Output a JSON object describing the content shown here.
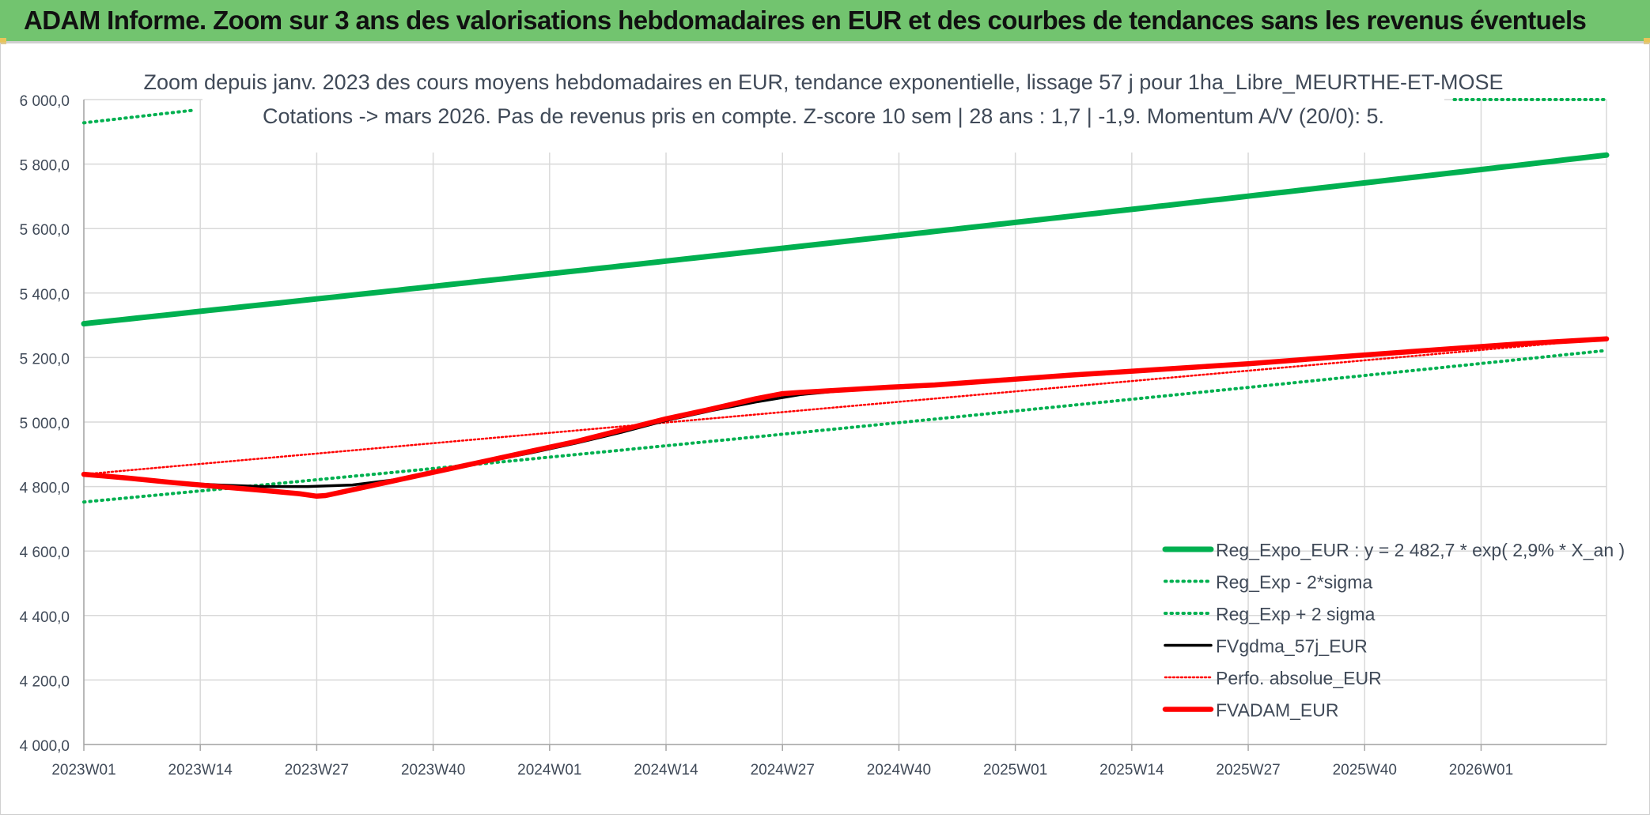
{
  "header": {
    "title": "ADAM Informe. Zoom sur 3 ans des valorisations hebdomadaires en EUR et des courbes de tendances sans les revenus éventuels"
  },
  "colors": {
    "banner_bg": "#72c46f",
    "reg_expo": "#00b050",
    "sigma_lines": "#00b050",
    "fvgdma": "#000000",
    "perfo": "#ff0000",
    "fvadam": "#ff0000",
    "grid": "#d9d9d9"
  },
  "chart_data": {
    "type": "line",
    "title": "Zoom depuis janv. 2023 des cours moyens hebdomadaires en EUR, tendance exponentielle, lissage 57 j pour 1ha_Libre_MEURTHE-ET-MOSE",
    "subtitle": "Cotations -> mars 2026. Pas de revenus pris en compte. Z-score 10 sem | 28 ans : 1,7 | -1,9. Momentum A/V (20/0): 5.",
    "xlabel": "",
    "ylabel": "",
    "ylim": [
      4000,
      6000
    ],
    "y_ticks": [
      4000,
      4200,
      4400,
      4600,
      4800,
      5000,
      5200,
      5400,
      5600,
      5800,
      6000
    ],
    "y_tick_labels": [
      "4 000,0",
      "4 200,0",
      "4 400,0",
      "4 600,0",
      "4 800,0",
      "5 000,0",
      "5 200,0",
      "5 400,0",
      "5 600,0",
      "5 800,0",
      "6 000,0"
    ],
    "x_tick_labels": [
      "2023W01",
      "2023W14",
      "2023W27",
      "2023W40",
      "2024W01",
      "2024W14",
      "2024W27",
      "2024W40",
      "2025W01",
      "2025W14",
      "2025W27",
      "2025W40",
      "2026W01"
    ],
    "x_tick_weeks": [
      0,
      13,
      26,
      39,
      52,
      65,
      78,
      91,
      104,
      117,
      130,
      143,
      156
    ],
    "x_range_weeks": [
      0,
      170
    ],
    "grid": true,
    "legend_position": "bottom-right",
    "series": [
      {
        "name": "Reg_Expo_EUR : y = 2 482,7 * exp( 2,9% *  X_an )",
        "style": "solid-thick",
        "x": [
          0,
          170
        ],
        "y": [
          5305,
          5828
        ],
        "curve": "exponential"
      },
      {
        "name": "Reg_Exp - 2*sigma",
        "style": "dotted",
        "x": [
          0,
          170
        ],
        "y": [
          4752,
          5222
        ],
        "curve": "exponential"
      },
      {
        "name": "Reg_Exp + 2 sigma",
        "style": "dotted",
        "segments": [
          {
            "x": [
              0,
              12.5
            ],
            "y": [
              5928,
              5968
            ]
          },
          {
            "x": [
              153,
              170
            ],
            "y": [
              6000,
              6000
            ]
          }
        ]
      },
      {
        "name": "FVgdma_57j_EUR",
        "style": "solid",
        "x": [
          0,
          5,
          10,
          15,
          20,
          25,
          30,
          35,
          40,
          45,
          50,
          55,
          60,
          65,
          70,
          75,
          80,
          85,
          90,
          95,
          100,
          110,
          120,
          130,
          140,
          150,
          160,
          170
        ],
        "y": [
          4838,
          4825,
          4812,
          4805,
          4800,
          4800,
          4805,
          4822,
          4850,
          4878,
          4905,
          4935,
          4968,
          5005,
          5035,
          5062,
          5085,
          5098,
          5108,
          5115,
          5125,
          5145,
          5163,
          5181,
          5202,
          5222,
          5242,
          5258
        ]
      },
      {
        "name": "Perfo. absolue_EUR",
        "style": "dotted",
        "x": [
          0,
          170
        ],
        "y": [
          4838,
          5258
        ],
        "hidden_under": "FVADAM_EUR"
      },
      {
        "name": "FVADAM_EUR",
        "style": "solid-thick",
        "x": [
          0,
          5,
          10,
          15,
          20,
          24,
          26,
          27,
          30,
          35,
          40,
          45,
          50,
          55,
          60,
          65,
          70,
          75,
          78,
          80,
          85,
          90,
          95,
          100,
          110,
          120,
          130,
          140,
          150,
          160,
          170
        ],
        "y": [
          4838,
          4826,
          4812,
          4800,
          4788,
          4778,
          4770,
          4772,
          4790,
          4820,
          4850,
          4880,
          4910,
          4940,
          4975,
          5010,
          5040,
          5072,
          5088,
          5092,
          5100,
          5108,
          5115,
          5125,
          5145,
          5163,
          5181,
          5202,
          5222,
          5242,
          5258
        ]
      }
    ]
  }
}
